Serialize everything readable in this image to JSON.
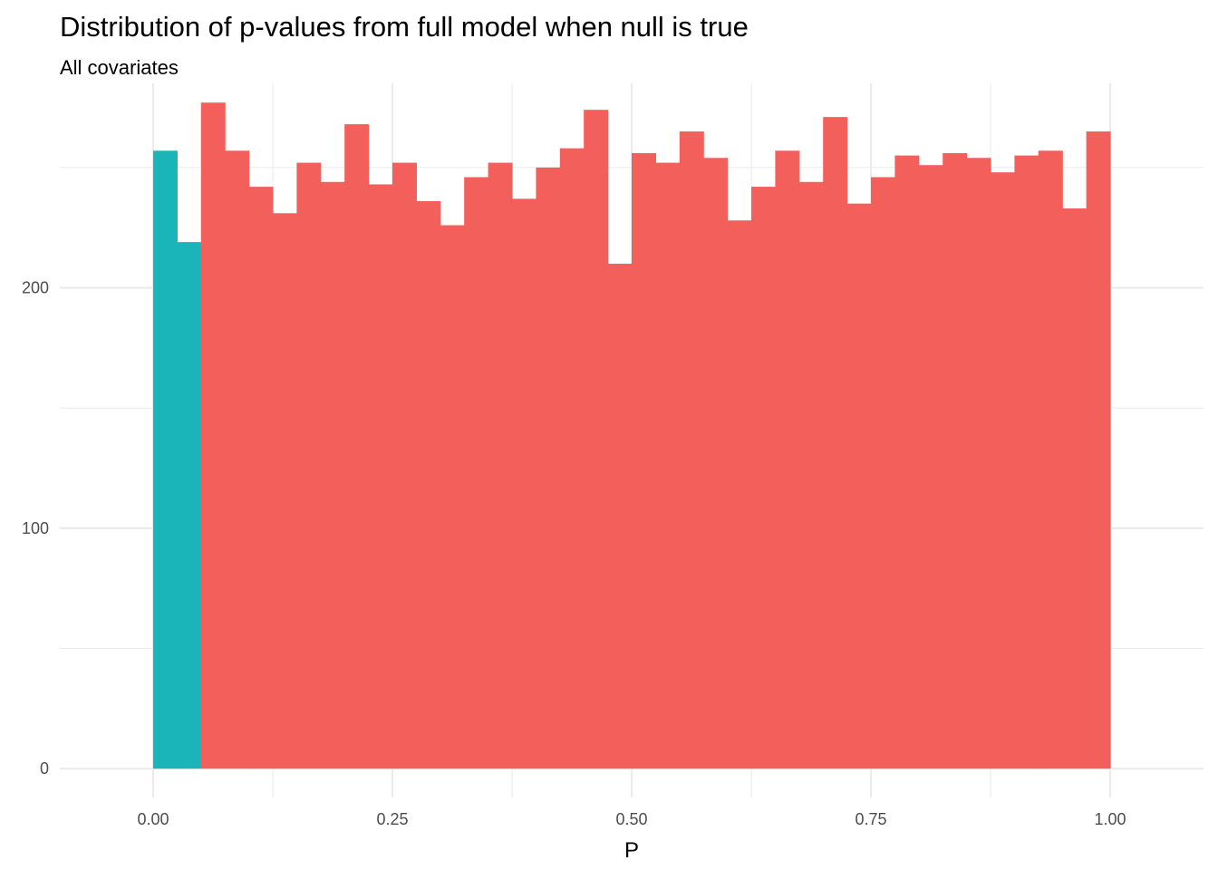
{
  "chart_data": {
    "type": "bar",
    "title": "Distribution of p-values from full model when null is true",
    "subtitle": "All covariates",
    "xlabel": "P",
    "ylabel": "",
    "xlim": [
      -0.0975,
      1.0975
    ],
    "ylim": [
      -12,
      285
    ],
    "x_ticks": [
      {
        "value": 0,
        "label": "0.00"
      },
      {
        "value": 0.25,
        "label": "0.25"
      },
      {
        "value": 0.5,
        "label": "0.50"
      },
      {
        "value": 0.75,
        "label": "0.75"
      },
      {
        "value": 1,
        "label": "1.00"
      }
    ],
    "x_minor_ticks": [
      0.125,
      0.375,
      0.625,
      0.875
    ],
    "y_ticks": [
      {
        "value": 0,
        "label": "0"
      },
      {
        "value": 100,
        "label": "100"
      },
      {
        "value": 200,
        "label": "200"
      }
    ],
    "y_minor_ticks": [
      50,
      150,
      250
    ],
    "grid": true,
    "legend": "none",
    "bin_width": 0.025,
    "bins": [
      {
        "x_start": 0.0,
        "count": 257,
        "group": "significant"
      },
      {
        "x_start": 0.025,
        "count": 219,
        "group": "significant"
      },
      {
        "x_start": 0.05,
        "count": 277,
        "group": "not-significant"
      },
      {
        "x_start": 0.075,
        "count": 257,
        "group": "not-significant"
      },
      {
        "x_start": 0.1,
        "count": 242,
        "group": "not-significant"
      },
      {
        "x_start": 0.125,
        "count": 231,
        "group": "not-significant"
      },
      {
        "x_start": 0.15,
        "count": 252,
        "group": "not-significant"
      },
      {
        "x_start": 0.175,
        "count": 244,
        "group": "not-significant"
      },
      {
        "x_start": 0.2,
        "count": 268,
        "group": "not-significant"
      },
      {
        "x_start": 0.225,
        "count": 243,
        "group": "not-significant"
      },
      {
        "x_start": 0.25,
        "count": 252,
        "group": "not-significant"
      },
      {
        "x_start": 0.275,
        "count": 236,
        "group": "not-significant"
      },
      {
        "x_start": 0.3,
        "count": 226,
        "group": "not-significant"
      },
      {
        "x_start": 0.325,
        "count": 246,
        "group": "not-significant"
      },
      {
        "x_start": 0.35,
        "count": 252,
        "group": "not-significant"
      },
      {
        "x_start": 0.375,
        "count": 237,
        "group": "not-significant"
      },
      {
        "x_start": 0.4,
        "count": 250,
        "group": "not-significant"
      },
      {
        "x_start": 0.425,
        "count": 258,
        "group": "not-significant"
      },
      {
        "x_start": 0.45,
        "count": 274,
        "group": "not-significant"
      },
      {
        "x_start": 0.475,
        "count": 210,
        "group": "not-significant"
      },
      {
        "x_start": 0.5,
        "count": 256,
        "group": "not-significant"
      },
      {
        "x_start": 0.525,
        "count": 252,
        "group": "not-significant"
      },
      {
        "x_start": 0.55,
        "count": 265,
        "group": "not-significant"
      },
      {
        "x_start": 0.575,
        "count": 254,
        "group": "not-significant"
      },
      {
        "x_start": 0.6,
        "count": 228,
        "group": "not-significant"
      },
      {
        "x_start": 0.625,
        "count": 242,
        "group": "not-significant"
      },
      {
        "x_start": 0.65,
        "count": 257,
        "group": "not-significant"
      },
      {
        "x_start": 0.675,
        "count": 244,
        "group": "not-significant"
      },
      {
        "x_start": 0.7,
        "count": 271,
        "group": "not-significant"
      },
      {
        "x_start": 0.725,
        "count": 235,
        "group": "not-significant"
      },
      {
        "x_start": 0.75,
        "count": 246,
        "group": "not-significant"
      },
      {
        "x_start": 0.775,
        "count": 255,
        "group": "not-significant"
      },
      {
        "x_start": 0.8,
        "count": 251,
        "group": "not-significant"
      },
      {
        "x_start": 0.825,
        "count": 256,
        "group": "not-significant"
      },
      {
        "x_start": 0.85,
        "count": 254,
        "group": "not-significant"
      },
      {
        "x_start": 0.875,
        "count": 248,
        "group": "not-significant"
      },
      {
        "x_start": 0.9,
        "count": 255,
        "group": "not-significant"
      },
      {
        "x_start": 0.925,
        "count": 257,
        "group": "not-significant"
      },
      {
        "x_start": 0.95,
        "count": 233,
        "group": "not-significant"
      },
      {
        "x_start": 0.975,
        "count": 265,
        "group": "not-significant"
      }
    ],
    "colors": {
      "significant": "#19B5B9",
      "not-significant": "#F35F5B"
    }
  }
}
